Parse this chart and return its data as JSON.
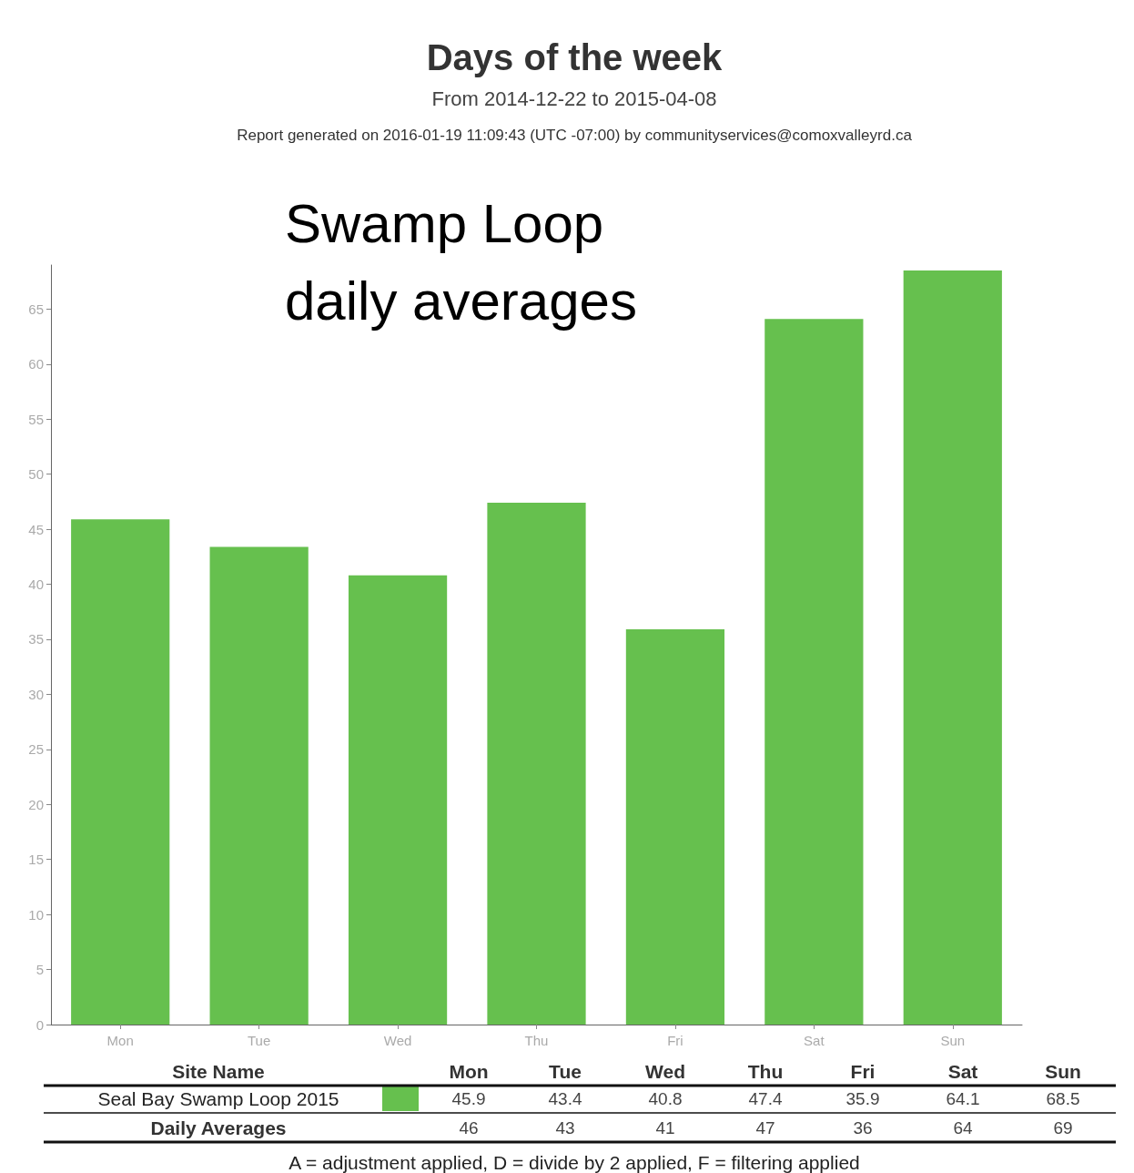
{
  "chart_data": {
    "type": "bar",
    "title": "Days of the week",
    "subtitle": "From 2014-12-22 to 2015-04-08",
    "annotations": [
      "Report generated on 2016-01-19 11:09:43 (UTC -07:00) by communityservices@comoxvalleyrd.ca",
      "Swamp Loop\ndaily averages",
      "Site Name",
      "45.9",
      "43.4",
      "40.8",
      "47.4",
      "35.9",
      "64.1",
      "68.5",
      "Daily Averages",
      "46",
      "43",
      "41",
      "47",
      "36",
      "64",
      "69",
      "A = adjustment applied, D = divide by 2 applied, F = filtering applied"
    ],
    "categories": [
      "Mon",
      "Tue",
      "Wed",
      "Thu",
      "Fri",
      "Sat",
      "Sun"
    ],
    "series": [
      {
        "name": "Seal Bay Swamp Loop 2015",
        "color": "#66c04e",
        "values": [
          45.9,
          43.4,
          40.8,
          47.4,
          35.9,
          64.1,
          68.5
        ]
      }
    ],
    "ylim": [
      0,
      69
    ],
    "yticks": [
      0,
      5,
      10,
      15,
      20,
      25,
      30,
      35,
      40,
      45,
      50,
      55,
      60,
      65
    ],
    "grid": false,
    "legend": "bottom"
  }
}
